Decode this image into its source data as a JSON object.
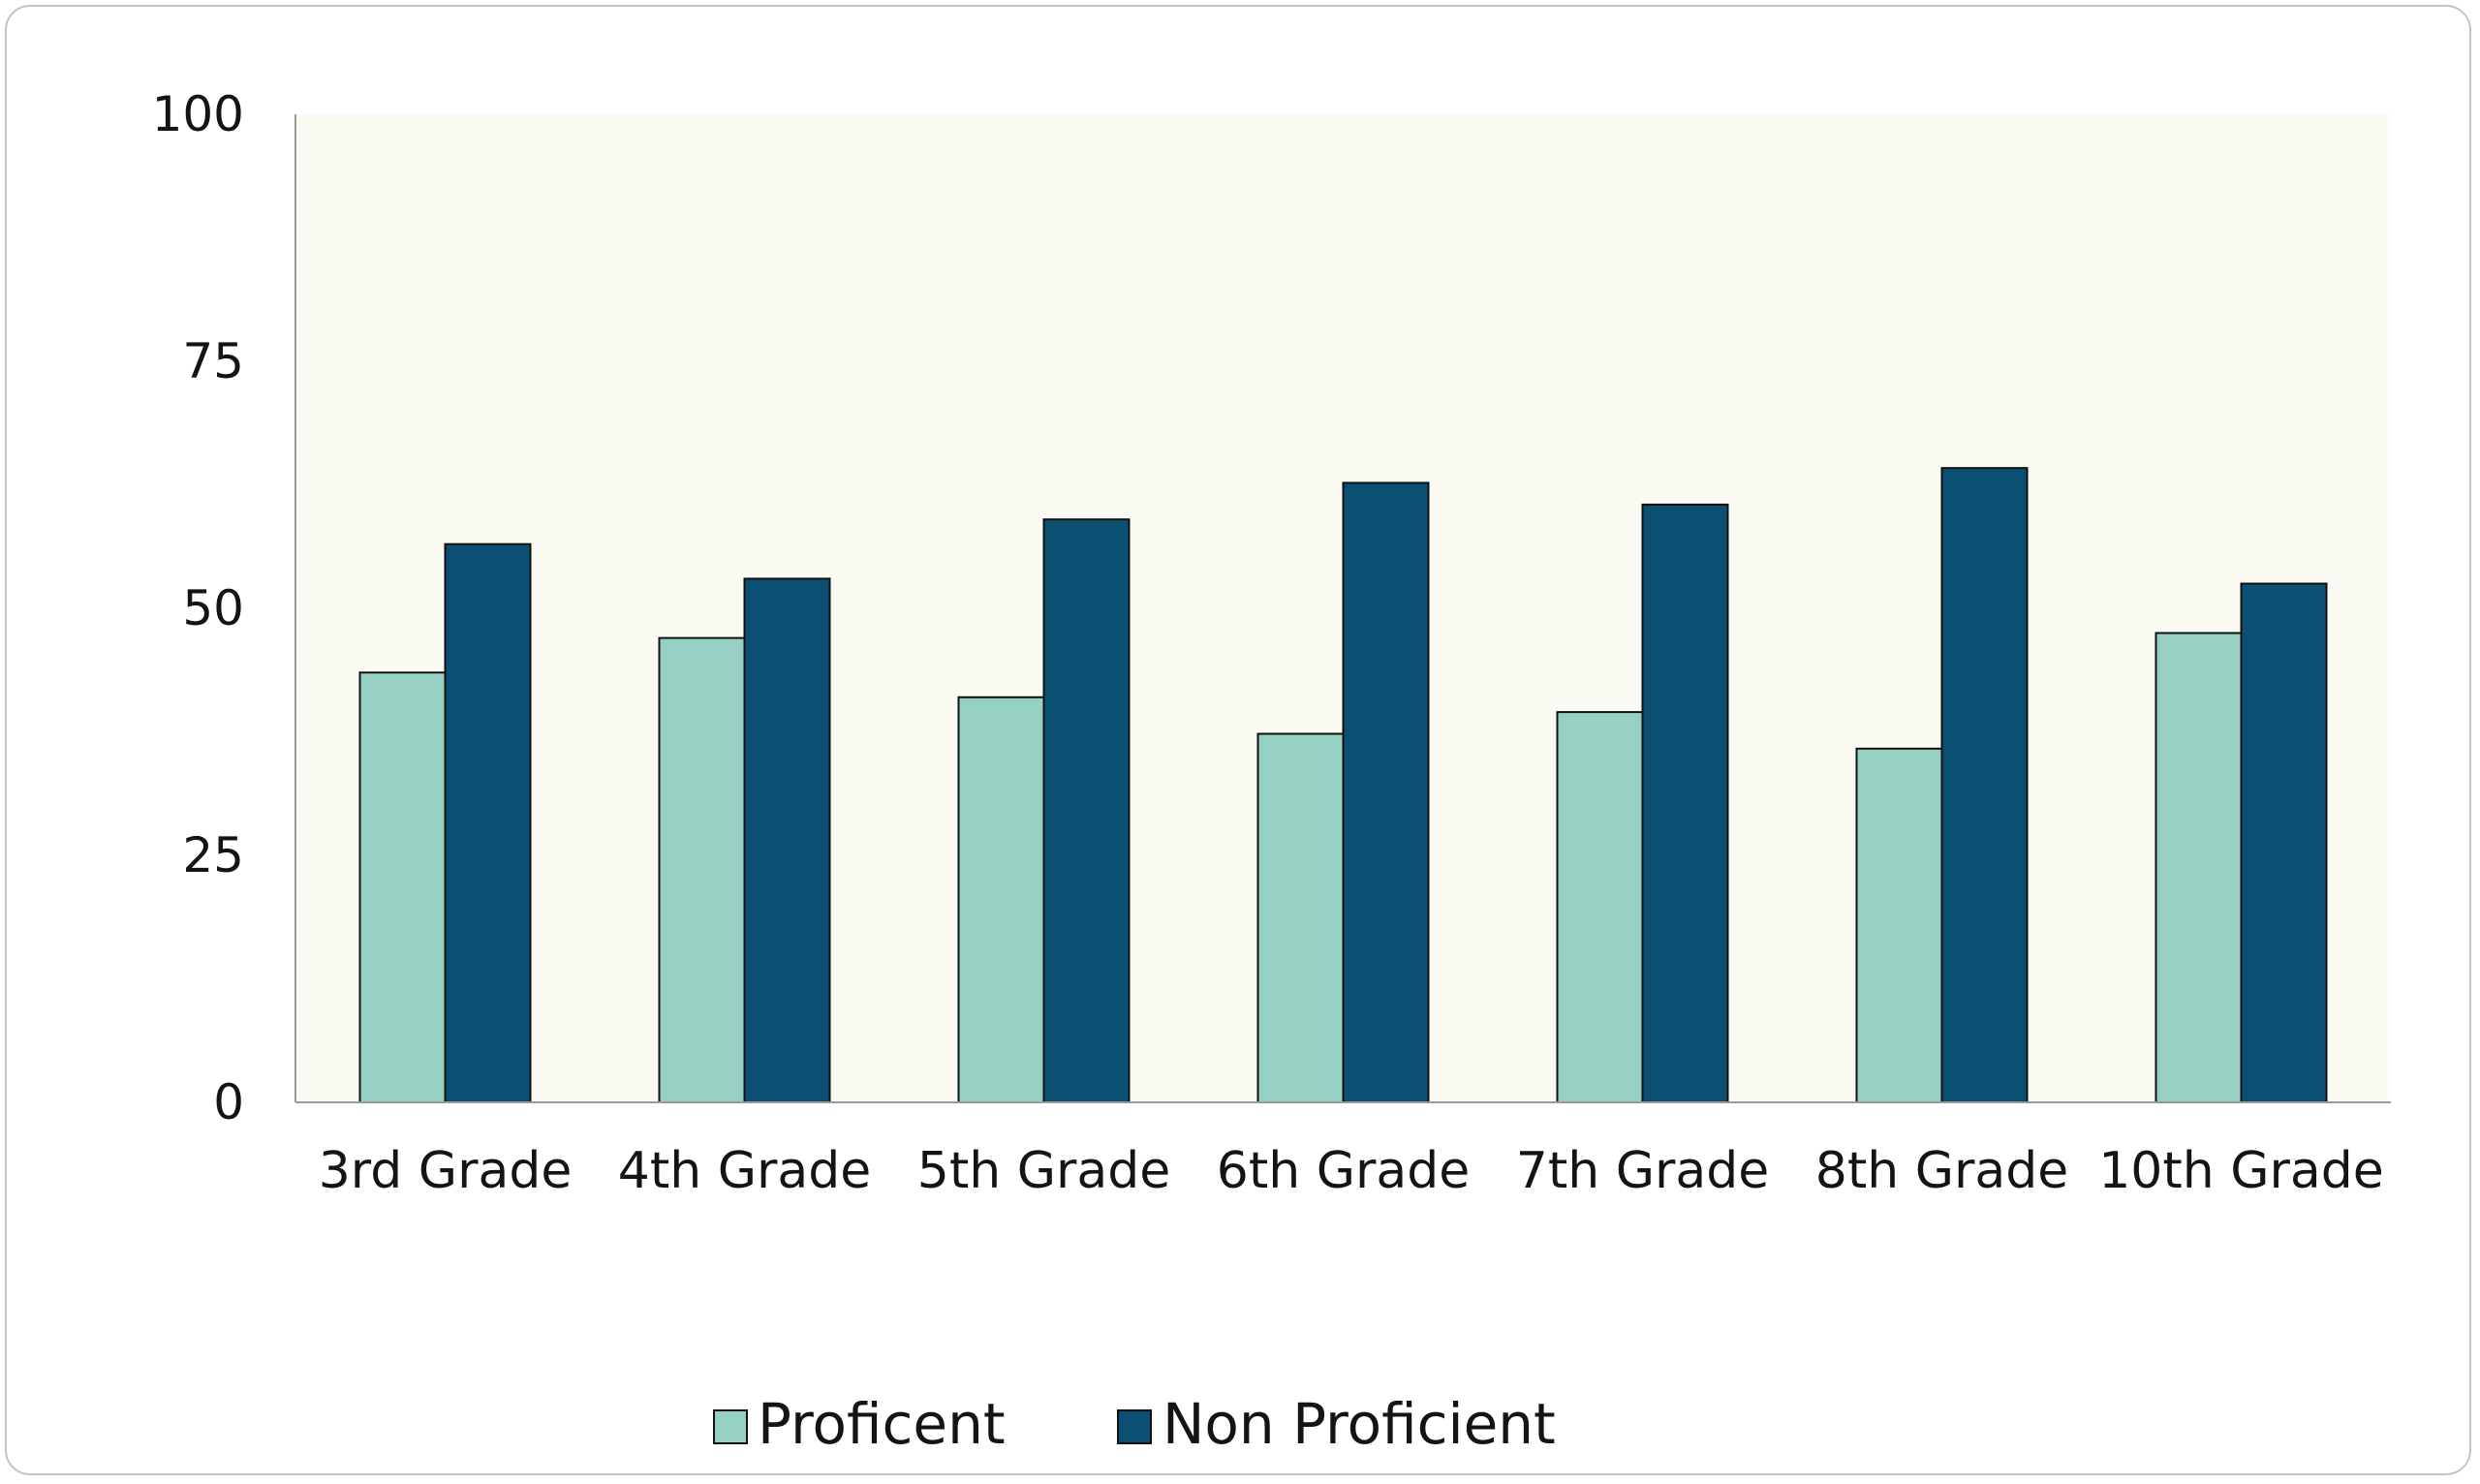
{
  "chart_data": {
    "type": "bar",
    "title": "",
    "xlabel": "",
    "ylabel": "",
    "ylim": [
      0,
      100
    ],
    "yticks": [
      0,
      25,
      50,
      75,
      100
    ],
    "categories": [
      "3rd Grade",
      "4th Grade",
      "5th Grade",
      "6th Grade",
      "7th Grade",
      "8th Grade",
      "10th Grade"
    ],
    "series": [
      {
        "name": "Proficent",
        "color": "#96d0c2",
        "values": [
          43.5,
          47,
          41,
          37.3,
          39.5,
          35.8,
          47.5
        ]
      },
      {
        "name": "Non Proficient",
        "color": "#0b5072",
        "values": [
          56.5,
          53,
          59,
          62.7,
          60.5,
          64.2,
          52.5
        ]
      }
    ],
    "plot_background": "#fcfbf3",
    "grid": false,
    "legend_position": "bottom-center"
  }
}
